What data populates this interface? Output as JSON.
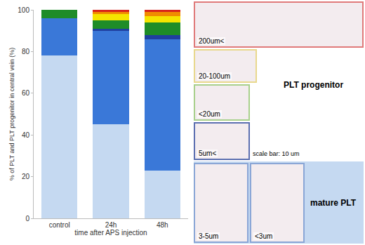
{
  "chart_data": {
    "type": "bar",
    "stacked": true,
    "y_label": "% of PLT and PLT progenitor in central vein (%)",
    "x_label": "time after APS injection",
    "categories": [
      "control",
      "24h",
      "48h"
    ],
    "series": [
      {
        "color": "#c5d9f1",
        "values": [
          78,
          45,
          23
        ]
      },
      {
        "color": "#3a78d8",
        "values": [
          18,
          45,
          63
        ]
      },
      {
        "color": "#1f3fa0",
        "values": [
          0,
          1,
          2
        ]
      },
      {
        "color": "#1e8c28",
        "values": [
          4,
          4,
          6
        ]
      },
      {
        "color": "#f5e400",
        "values": [
          0,
          3,
          3
        ]
      },
      {
        "color": "#f08c00",
        "values": [
          0,
          1,
          2
        ]
      },
      {
        "color": "#d8241c",
        "values": [
          0,
          1,
          1
        ]
      }
    ],
    "ylim": [
      0,
      100
    ],
    "yticks": [
      0,
      20,
      40,
      60,
      80,
      100
    ],
    "grid": false
  },
  "panel": {
    "progenitor_title": "PLT progenitor",
    "mature_title": "mature PLT",
    "scale_note": "scale bar: 10 um",
    "mature_color": "#c5d9f1",
    "progenitor_items": [
      {
        "label": "200um<",
        "color": "#e07a7a"
      },
      {
        "label": "20-100um",
        "color": "#e8d88c"
      },
      {
        "label": "<20um",
        "color": "#a8d08c"
      },
      {
        "label": "5um<",
        "color": "#5b6fb0"
      }
    ],
    "mature_items": [
      {
        "label": "3-5um",
        "color": "#8aa6d6"
      },
      {
        "label": "<3um",
        "color": "#8aa6d6"
      }
    ]
  }
}
